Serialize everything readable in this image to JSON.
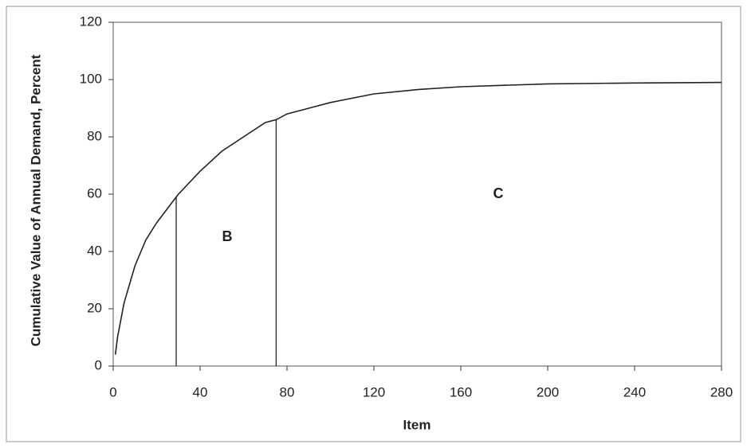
{
  "chart_data": {
    "type": "line",
    "x_label": "Item",
    "y_label": "Cumulative Value of Annual Demand, Percent",
    "x": [
      1,
      2,
      5,
      10,
      15,
      20,
      25,
      29,
      30,
      40,
      50,
      60,
      70,
      75,
      80,
      90,
      100,
      120,
      140,
      160,
      180,
      200,
      240,
      280
    ],
    "series": [
      {
        "color": "#222222",
        "values": [
          4,
          10,
          22,
          35,
          44,
          50,
          55,
          59,
          60,
          68,
          75,
          80,
          85,
          86,
          88,
          90,
          92,
          95,
          96.5,
          97.5,
          98,
          98.5,
          98.8,
          99
        ]
      }
    ],
    "cutoffs": [
      {
        "x": 29,
        "y": 59
      },
      {
        "x": 75,
        "y": 86
      }
    ],
    "annotations": [
      "B",
      "C"
    ],
    "xlim": [
      0,
      280
    ],
    "xticks": [
      0,
      40,
      80,
      120,
      160,
      200,
      240,
      280
    ],
    "ylim": [
      0,
      120
    ],
    "yticks": [
      0,
      20,
      40,
      60,
      80,
      100,
      120
    ],
    "grid": false
  }
}
